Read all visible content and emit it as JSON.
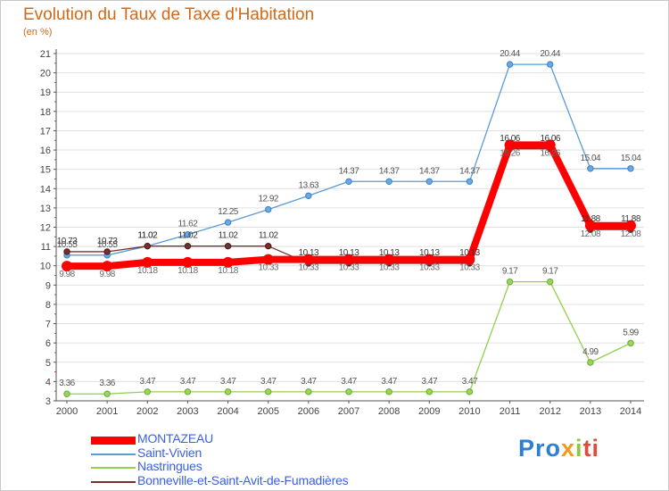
{
  "chart_data": {
    "type": "line",
    "title": "Evolution du Taux de Taxe d'Habitation",
    "subtitle": "(en %)",
    "x": [
      "2000",
      "2001",
      "2002",
      "2003",
      "2004",
      "2005",
      "2006",
      "2007",
      "2008",
      "2009",
      "2010",
      "2011",
      "2012",
      "2013",
      "2014"
    ],
    "y_ticks": [
      "3",
      "4",
      "5",
      "6",
      "7",
      "8",
      "9",
      "10",
      "11",
      "12",
      "13",
      "14",
      "15",
      "16",
      "17",
      "18",
      "19",
      "20",
      "21"
    ],
    "ylim": [
      3,
      21
    ],
    "grid": "horizontal",
    "legend_position": "bottom-left",
    "series": [
      {
        "name": "MONTAZEAU",
        "color": "#ff0000",
        "values": [
          9.98,
          9.98,
          10.18,
          10.18,
          10.18,
          10.33,
          10.33,
          10.33,
          10.33,
          10.33,
          10.33,
          16.26,
          16.26,
          12.08,
          12.08
        ],
        "labels": [
          "9.98",
          "9.98",
          "10.18",
          "10.18",
          "10.18",
          "10.33",
          "10.33",
          "10.33",
          "10.33",
          "10.33",
          "10.33",
          "16.26",
          "16.26",
          "12.08",
          "12.08"
        ]
      },
      {
        "name": "Saint-Vivien",
        "color": "#5b9bd5",
        "values": [
          10.55,
          10.55,
          11.02,
          11.62,
          12.25,
          12.92,
          13.63,
          14.37,
          14.37,
          14.37,
          14.37,
          20.44,
          20.44,
          15.04,
          15.04
        ],
        "labels": [
          "10.55",
          "10.55",
          "11.02",
          "11.62",
          "12.25",
          "12.92",
          "13.63",
          "14.37",
          "14.37",
          "14.37",
          "14.37",
          "20.44",
          "20.44",
          "15.04",
          "15.04"
        ]
      },
      {
        "name": "Nastringues",
        "color": "#8fd14f",
        "values": [
          3.36,
          3.36,
          3.47,
          3.47,
          3.47,
          3.47,
          3.47,
          3.47,
          3.47,
          3.47,
          3.47,
          9.17,
          9.17,
          4.99,
          5.99
        ],
        "labels": [
          "3.36",
          "3.36",
          "3.47",
          "3.47",
          "3.47",
          "3.47",
          "3.47",
          "3.47",
          "3.47",
          "3.47",
          "3.47",
          "9.17",
          "9.17",
          "4.99",
          "5.99"
        ]
      },
      {
        "name": "Bonneville-et-Saint-Avit-de-Fumadières",
        "color": "#7b2d2d",
        "values": [
          10.73,
          10.73,
          11.02,
          11.02,
          11.02,
          11.02,
          10.13,
          10.13,
          10.13,
          10.13,
          10.13,
          16.06,
          16.06,
          11.88,
          11.88
        ],
        "labels": [
          "10.73",
          "10.73",
          "11.02",
          "11.02",
          "11.02",
          "11.02",
          "10.13",
          "10.13",
          "10.13",
          "10.13",
          "10.13",
          "16.06",
          "16.06",
          "11.88",
          "11.88"
        ]
      }
    ]
  },
  "logo": {
    "p1": "Pro",
    "p2": "x",
    "p3": "i",
    "p4": "ti"
  }
}
